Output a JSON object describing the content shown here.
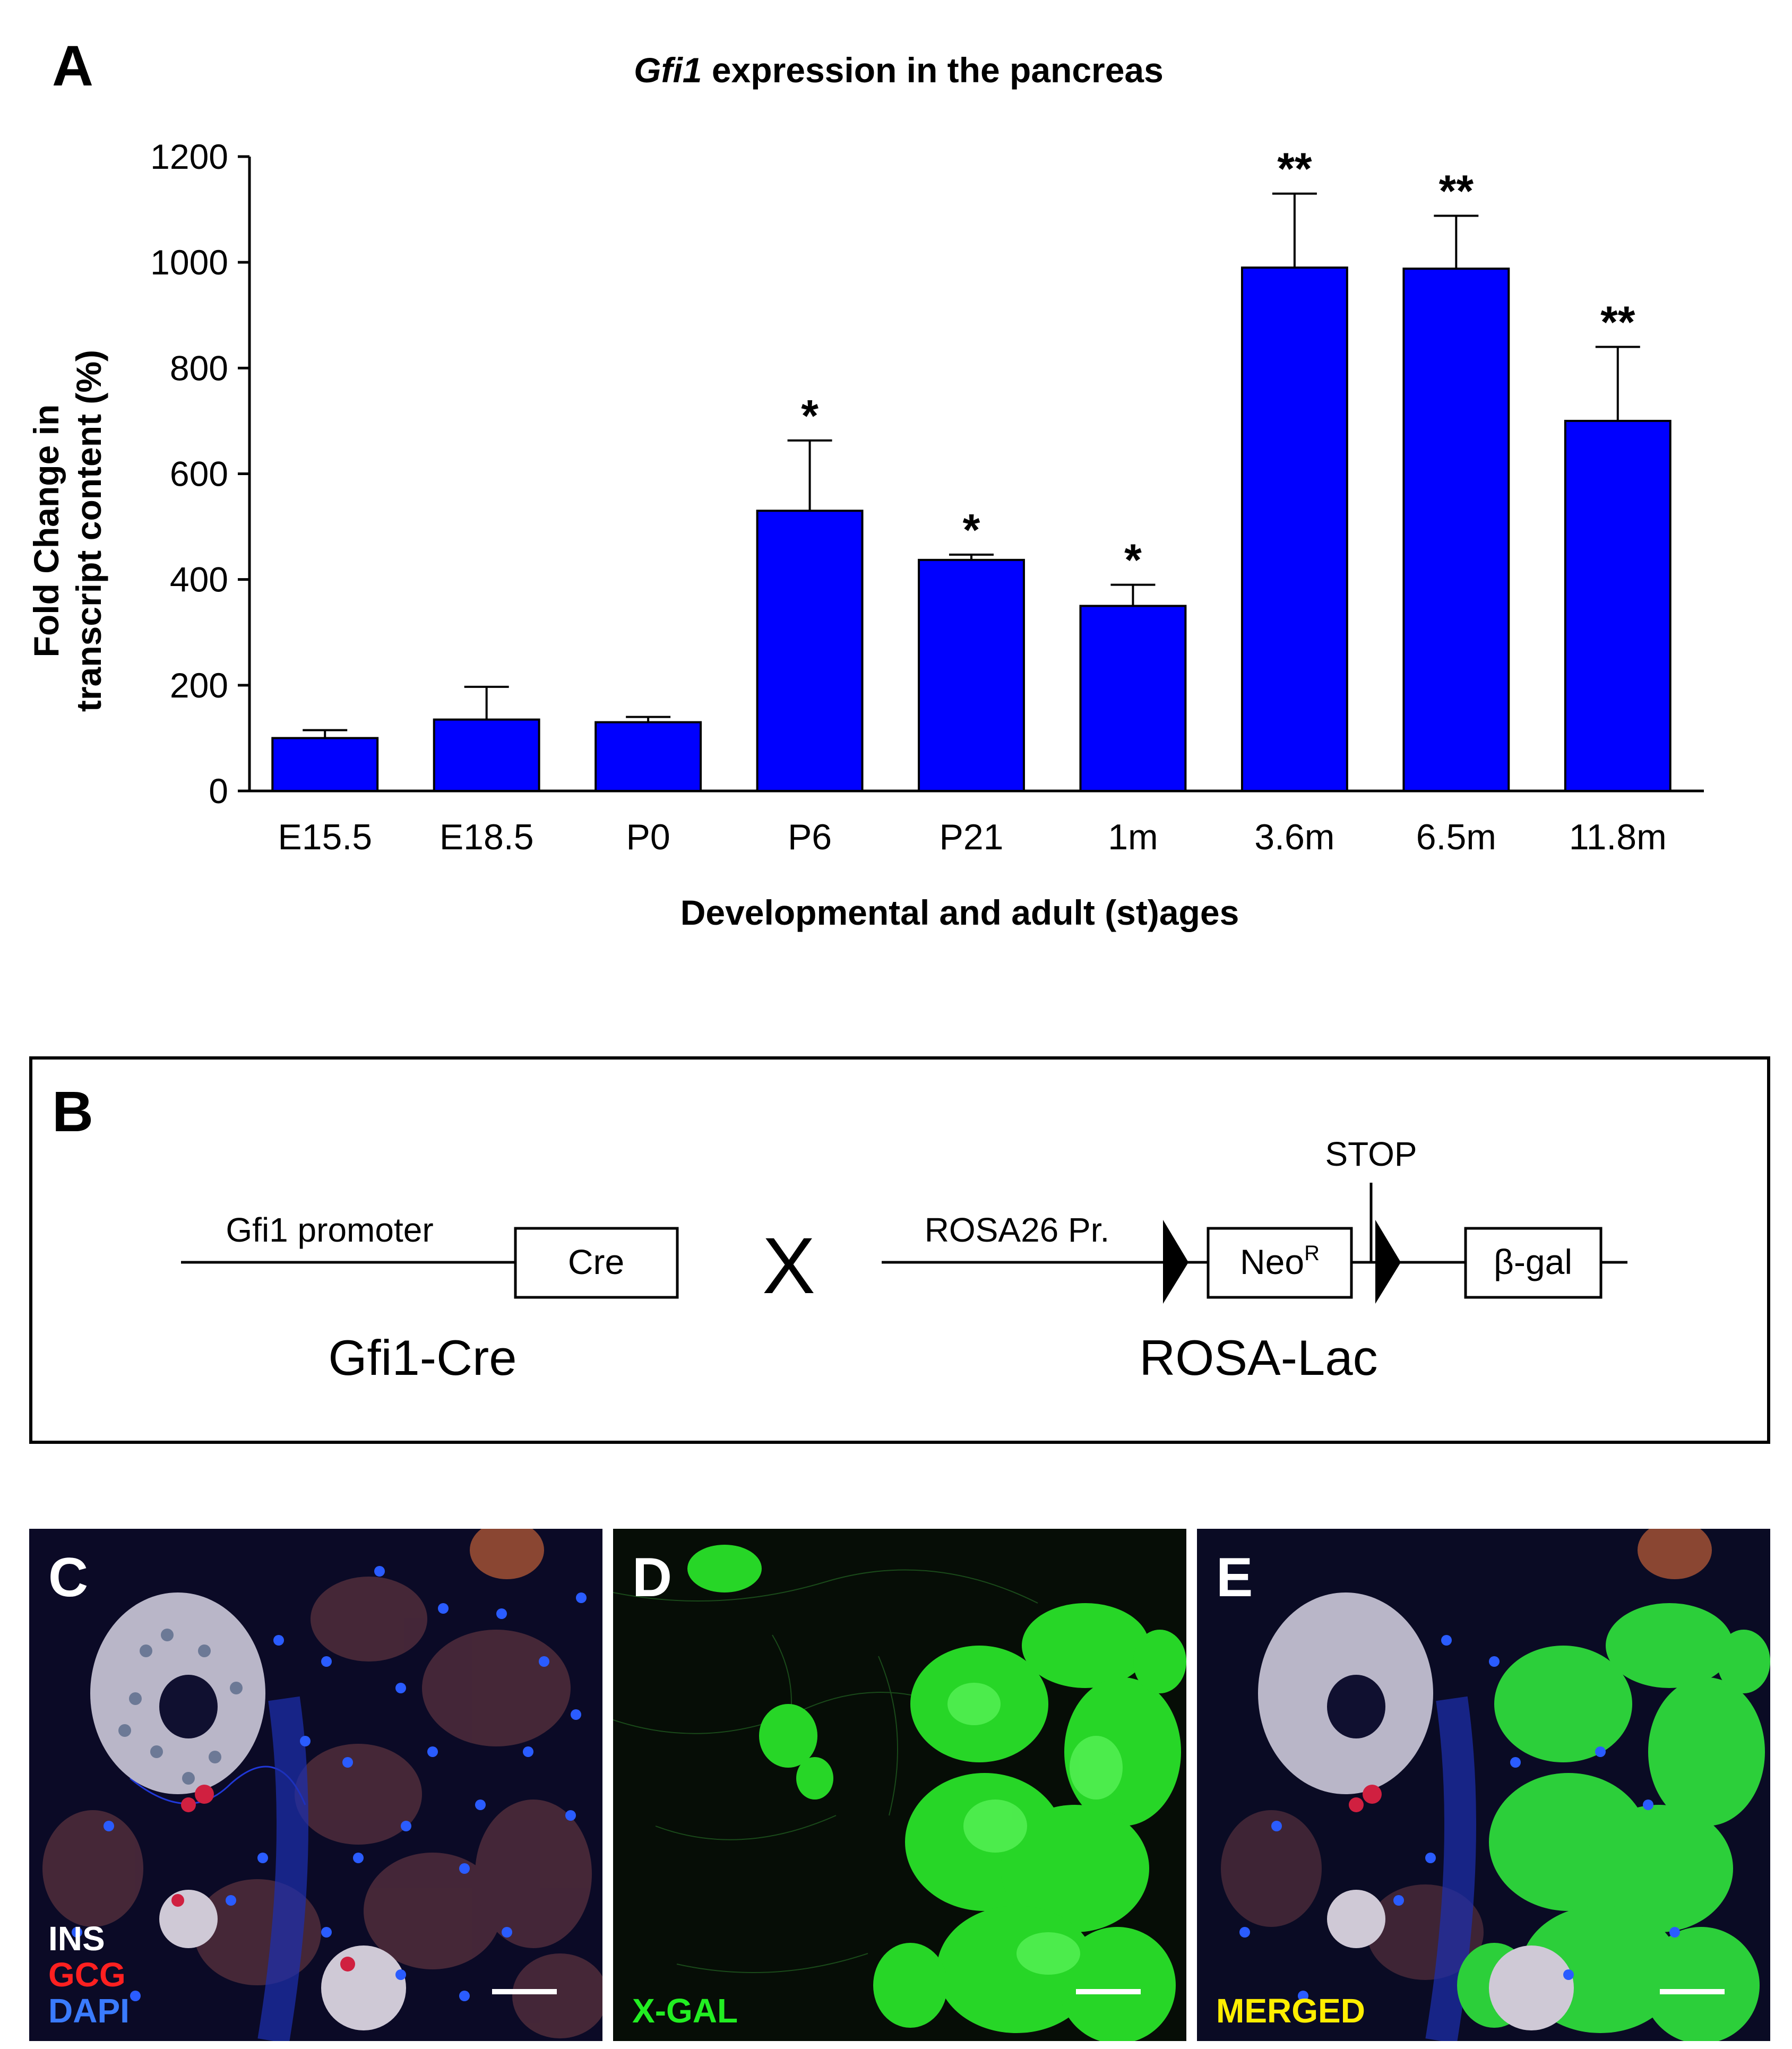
{
  "panels": {
    "a": "A",
    "b": "B",
    "c": "C",
    "d": "D",
    "e": "E"
  },
  "chart_data": {
    "type": "bar",
    "title_italic": "Gfi1",
    "title_rest": " expression in the pancreas",
    "ylabel_line1": "Fold Change in",
    "ylabel_line2": "transcript content (%)",
    "xlabel": "Developmental and adult (st)ages",
    "categories": [
      "E15.5",
      "E18.5",
      "P0",
      "P6",
      "P21",
      "1m",
      "3.6m",
      "6.5m",
      "11.8m"
    ],
    "values": [
      100,
      135,
      130,
      530,
      437,
      350,
      990,
      988,
      700
    ],
    "errors": [
      15,
      62,
      10,
      133,
      10,
      40,
      140,
      100,
      140
    ],
    "significance": [
      "",
      "",
      "",
      "*",
      "*",
      "*",
      "**",
      "**",
      "**"
    ],
    "ylim": [
      0,
      1200
    ],
    "yticks": [
      0,
      200,
      400,
      600,
      800,
      1000,
      1200
    ],
    "bar_color": "#0000ff",
    "grid": false
  },
  "diagram": {
    "left_label": "Gfi1 promoter",
    "left_box": "Cre",
    "cross": "X",
    "left_name": "Gfi1-Cre",
    "right_label": "ROSA26 Pr.",
    "neo_box": "Neo",
    "neo_sup": "R",
    "stop_label": "STOP",
    "bgal_box": "β-gal",
    "right_name": "ROSA-Lac"
  },
  "micrographs": {
    "c_stains": [
      {
        "text": "INS",
        "color": "#ffffff"
      },
      {
        "text": "GCG",
        "color": "#ff2020"
      },
      {
        "text": "DAPI",
        "color": "#3a7bff"
      }
    ],
    "d_stain": {
      "text": "X-GAL",
      "color": "#22ee22"
    },
    "e_stain": {
      "text": "MERGED",
      "color": "#ffee00"
    }
  }
}
